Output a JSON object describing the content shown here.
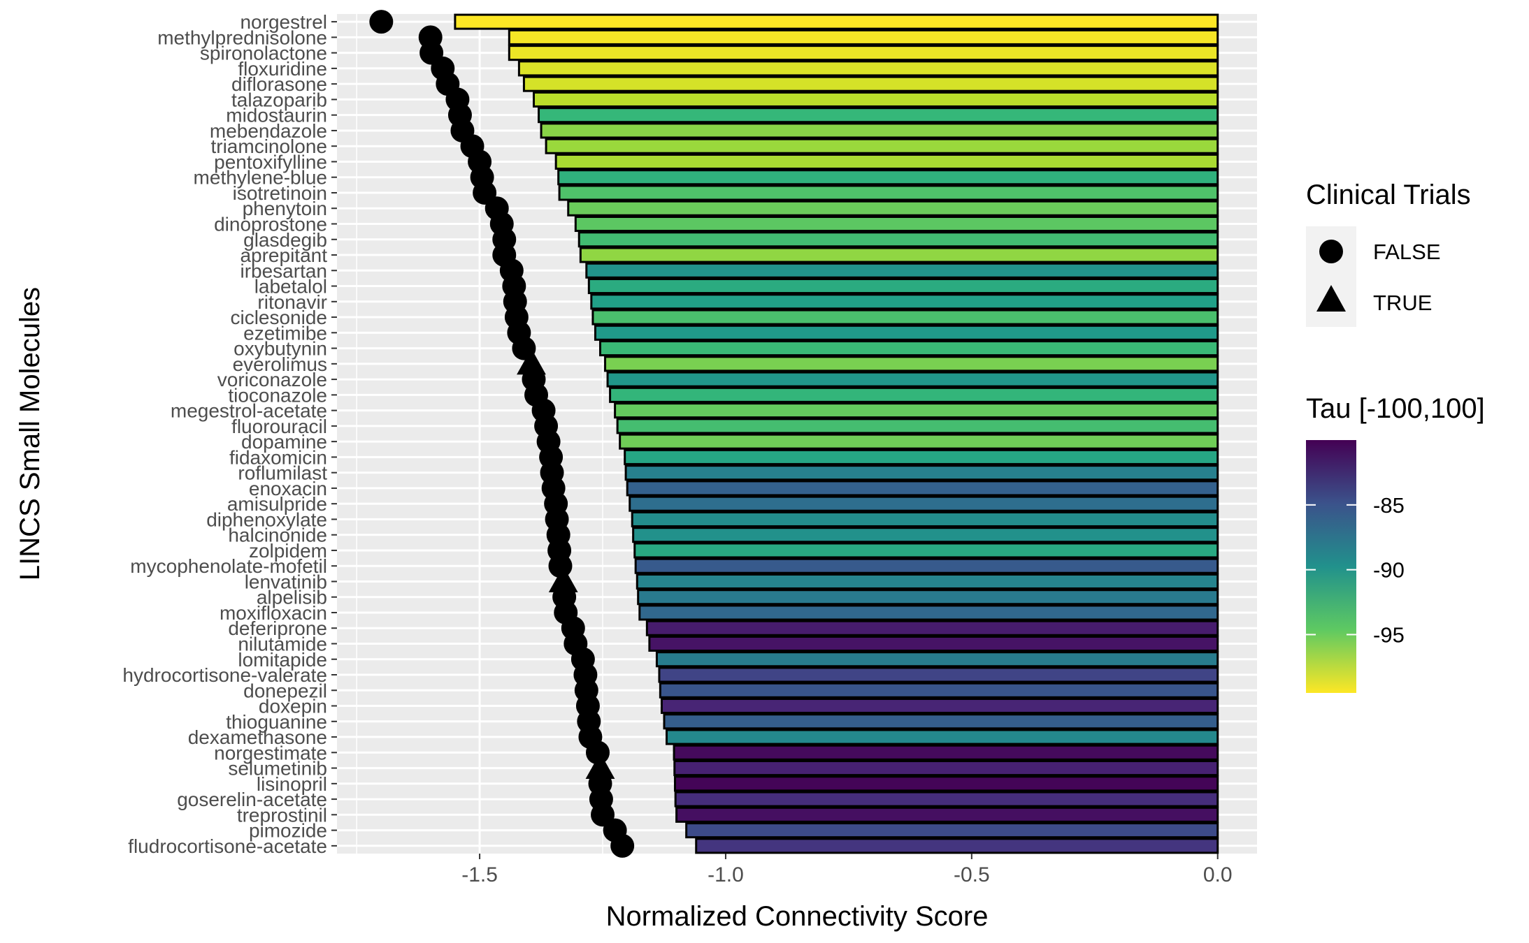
{
  "chart_data": {
    "type": "bar",
    "orientation": "horizontal",
    "xlabel": "Normalized Connectivity Score",
    "ylabel": "LINCS Small Molecules",
    "xlim": [
      -1.79,
      0.08
    ],
    "x_ticks": [
      -1.5,
      -1.0,
      -0.5,
      0.0
    ],
    "x_tick_labels": [
      "-1.5",
      "-1.0",
      "-0.5",
      "0.0"
    ],
    "grid": true,
    "colors": {
      "panel": "#EBEBEB",
      "grid": "#FFFFFF",
      "bar_outline": "#000000",
      "point": "#000000"
    },
    "legend_shape": {
      "title": "Clinical Trials",
      "entries": [
        {
          "label": "FALSE",
          "shape": "circle"
        },
        {
          "label": "TRUE",
          "shape": "triangle"
        }
      ],
      "placement": "right"
    },
    "legend_color": {
      "title": "Tau [-100,100]",
      "range": [
        -99.5,
        -80
      ],
      "ticks": [
        -85,
        -90,
        -95
      ],
      "tick_labels": [
        "-85",
        "-90",
        "-95"
      ],
      "palette": "viridis",
      "placement": "right"
    },
    "categories": [
      "norgestrel",
      "methylprednisolone",
      "spironolactone",
      "floxuridine",
      "diflorasone",
      "talazoparib",
      "midostaurin",
      "mebendazole",
      "triamcinolone",
      "pentoxifylline",
      "methylene-blue",
      "isotretinoin",
      "phenytoin",
      "dinoprostone",
      "glasdegib",
      "aprepitant",
      "irbesartan",
      "labetalol",
      "ritonavir",
      "ciclesonide",
      "ezetimibe",
      "oxybutynin",
      "everolimus",
      "voriconazole",
      "tioconazole",
      "megestrol-acetate",
      "fluorouracil",
      "dopamine",
      "fidaxomicin",
      "roflumilast",
      "enoxacin",
      "amisulpride",
      "diphenoxylate",
      "halcinonide",
      "zolpidem",
      "mycophenolate-mofetil",
      "lenvatinib",
      "alpelisib",
      "moxifloxacin",
      "deferiprone",
      "nilutamide",
      "lomitapide",
      "hydrocortisone-valerate",
      "donepezil",
      "doxepin",
      "thioguanine",
      "dexamethasone",
      "norgestimate",
      "selumetinib",
      "lisinopril",
      "goserelin-acetate",
      "treprostinil",
      "pimozide",
      "fludrocortisone-acetate"
    ],
    "values": [
      -1.55,
      -1.44,
      -1.44,
      -1.42,
      -1.41,
      -1.39,
      -1.38,
      -1.375,
      -1.365,
      -1.345,
      -1.34,
      -1.338,
      -1.32,
      -1.305,
      -1.298,
      -1.295,
      -1.283,
      -1.278,
      -1.273,
      -1.27,
      -1.265,
      -1.255,
      -1.245,
      -1.24,
      -1.235,
      -1.225,
      -1.22,
      -1.215,
      -1.205,
      -1.203,
      -1.2,
      -1.195,
      -1.19,
      -1.188,
      -1.185,
      -1.183,
      -1.18,
      -1.178,
      -1.175,
      -1.16,
      -1.155,
      -1.14,
      -1.135,
      -1.133,
      -1.13,
      -1.125,
      -1.12,
      -1.105,
      -1.104,
      -1.103,
      -1.102,
      -1.1,
      -1.08,
      -1.06
    ],
    "point_x": [
      -1.7,
      -1.6,
      -1.598,
      -1.575,
      -1.565,
      -1.545,
      -1.54,
      -1.535,
      -1.515,
      -1.5,
      -1.495,
      -1.49,
      -1.465,
      -1.455,
      -1.45,
      -1.45,
      -1.435,
      -1.43,
      -1.428,
      -1.425,
      -1.42,
      -1.41,
      -1.395,
      -1.39,
      -1.385,
      -1.37,
      -1.365,
      -1.36,
      -1.355,
      -1.353,
      -1.35,
      -1.345,
      -1.343,
      -1.34,
      -1.338,
      -1.336,
      -1.33,
      -1.328,
      -1.325,
      -1.31,
      -1.305,
      -1.29,
      -1.285,
      -1.283,
      -1.28,
      -1.278,
      -1.275,
      -1.26,
      -1.255,
      -1.255,
      -1.253,
      -1.25,
      -1.225,
      -1.21
    ],
    "clinical_trials": [
      false,
      false,
      false,
      false,
      false,
      false,
      false,
      false,
      false,
      false,
      false,
      false,
      false,
      false,
      false,
      false,
      false,
      false,
      false,
      false,
      false,
      false,
      true,
      false,
      false,
      false,
      false,
      false,
      false,
      false,
      false,
      false,
      false,
      false,
      false,
      false,
      true,
      false,
      false,
      false,
      false,
      false,
      false,
      false,
      false,
      false,
      false,
      false,
      true,
      false,
      false,
      false,
      false,
      false
    ],
    "tau": [
      -99.5,
      -99.3,
      -99,
      -98.5,
      -98.3,
      -97.5,
      -93,
      -96,
      -96.5,
      -97,
      -92.5,
      -94,
      -95,
      -94.5,
      -93.5,
      -96.2,
      -90,
      -92,
      -91,
      -93.8,
      -90.5,
      -93.2,
      -95.5,
      -90.2,
      -92.8,
      -94.8,
      -93.6,
      -95.2,
      -91.5,
      -88.5,
      -86,
      -87,
      -89.5,
      -89.8,
      -91.8,
      -85.5,
      -88.8,
      -88,
      -86.5,
      -81.5,
      -81,
      -88.2,
      -84,
      -85.2,
      -82,
      -85.8,
      -89.2,
      -80.5,
      -81.8,
      -80.2,
      -82.5,
      -80.8,
      -84.5,
      -83
    ]
  }
}
